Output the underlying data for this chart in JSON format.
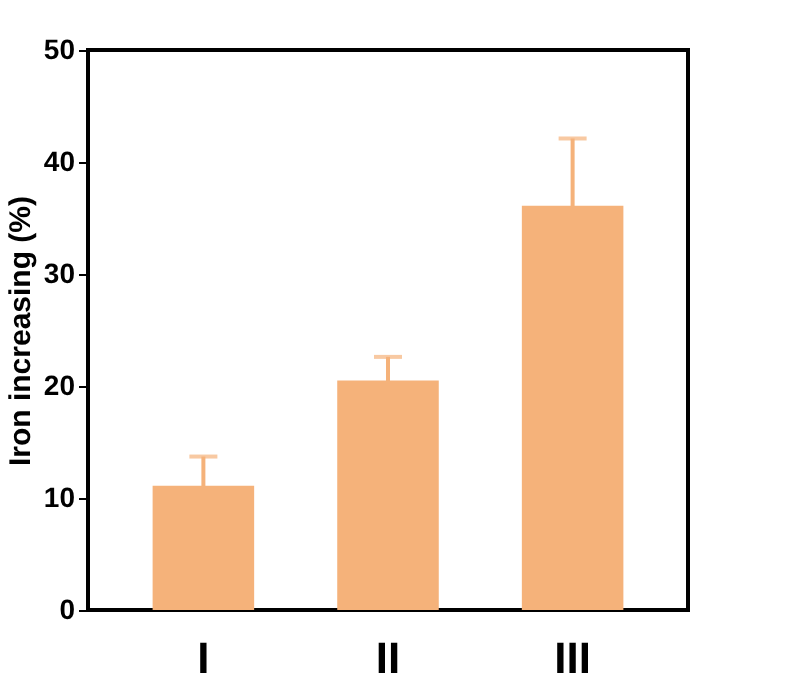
{
  "chart_data": {
    "type": "bar",
    "ylabel": "Iron increasing (%)",
    "categories": [
      "I",
      "II",
      "III"
    ],
    "values": [
      11.1,
      20.5,
      36.1
    ],
    "errors": [
      2.6,
      2.1,
      6.0
    ],
    "color": "#f5b27a",
    "ylim": [
      0,
      50
    ],
    "yticks": [
      0,
      10,
      20,
      30,
      40,
      50
    ],
    "grid": false
  }
}
